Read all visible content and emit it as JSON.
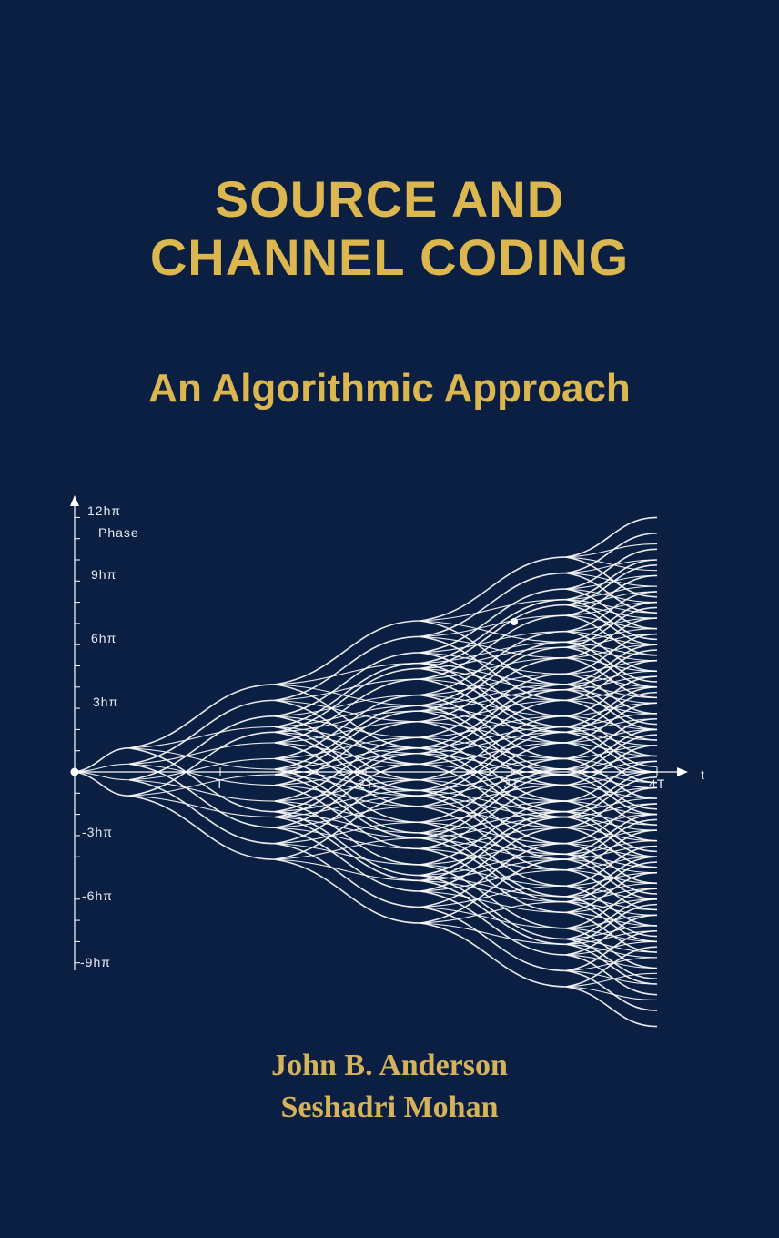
{
  "cover": {
    "title_line1": "SOURCE AND",
    "title_line2": "CHANNEL CODING",
    "subtitle": "An Algorithmic Approach",
    "authors": [
      "John B. Anderson",
      "Seshadri Mohan"
    ]
  },
  "figure": {
    "y_axis_label": "Phase",
    "x_axis_label": "t",
    "y_ticks": [
      "12hπ",
      "9hπ",
      "6hπ",
      "3hπ",
      "-3hπ",
      "-6hπ",
      "-9hπ"
    ],
    "x_ticks": [
      "T",
      "2T",
      "3T",
      "4T"
    ],
    "colors": {
      "background": "#0a1f42",
      "title": "#dcb64e",
      "lines": "#ffffff"
    }
  }
}
